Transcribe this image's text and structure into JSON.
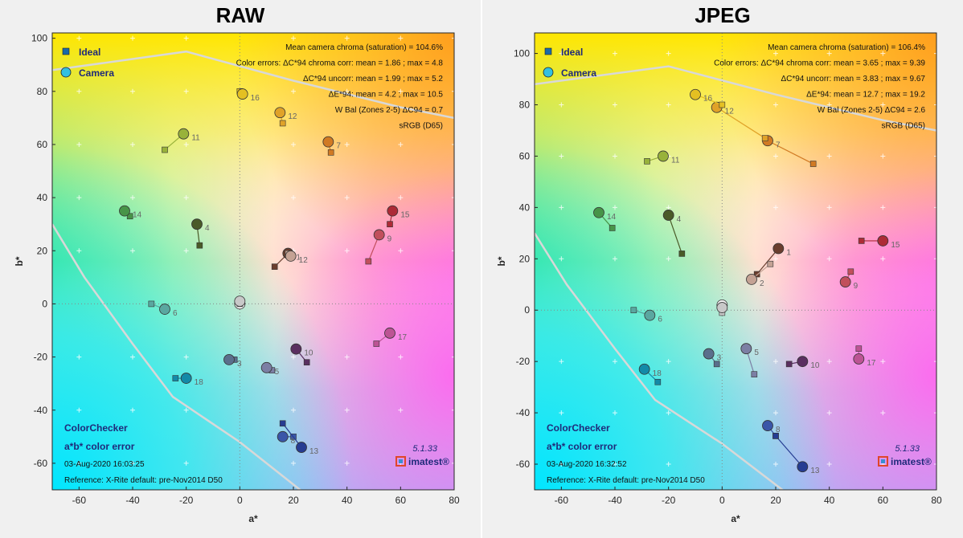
{
  "chart_data": [
    {
      "type": "scatter",
      "title": "RAW",
      "xlabel": "a*",
      "ylabel": "b*",
      "xlim": [
        -70,
        80
      ],
      "ylim": [
        -70,
        102
      ],
      "xticks": [
        -60,
        -40,
        -20,
        0,
        20,
        40,
        60,
        80
      ],
      "yticks": [
        -60,
        -40,
        -20,
        0,
        20,
        40,
        60,
        80,
        100
      ],
      "legend": [
        {
          "name": "Ideal",
          "marker": "square"
        },
        {
          "name": "Camera",
          "marker": "circle"
        }
      ],
      "info_lines": [
        "Mean camera chroma (saturation) = 104.6%",
        "Color errors:  ΔC*94 chroma corr:  mean = 1.86 ;  max = 4.8",
        "ΔC*94 uncorr:  mean = 1.99 ;  max = 5.2",
        "ΔE*94:  mean = 4.2 ;  max = 10.5",
        "W Bal (Zones 2-5)  ΔC94 = 0.7",
        "sRGB (D65)"
      ],
      "corner_bold": [
        "ColorChecker",
        "a*b* color error"
      ],
      "corner_text": [
        "03-Aug-2020 16:03:25",
        "Reference: X-Rite default:  pre-Nov2014  D50"
      ],
      "version": "5.1.33",
      "brand": "imatest®",
      "points": [
        {
          "label": "1",
          "ideal": [
            13,
            14
          ],
          "camera": [
            18,
            19
          ],
          "color": "#6a3e2e"
        },
        {
          "label": "12",
          "ideal": [
            18,
            19
          ],
          "camera": [
            19,
            18
          ],
          "color": "#c4a294"
        },
        {
          "label": "3",
          "ideal": [
            -2,
            -21
          ],
          "camera": [
            -4,
            -21
          ],
          "color": "#5a6f8c"
        },
        {
          "label": "4",
          "ideal": [
            -15,
            22
          ],
          "camera": [
            -16,
            30
          ],
          "color": "#4a5a28"
        },
        {
          "label": "5",
          "ideal": [
            12,
            -25
          ],
          "camera": [
            10,
            -24
          ],
          "color": "#7c7fa4"
        },
        {
          "label": "6",
          "ideal": [
            -33,
            0
          ],
          "camera": [
            -28,
            -2
          ],
          "color": "#5aa7a0"
        },
        {
          "label": "7",
          "ideal": [
            34,
            57
          ],
          "camera": [
            33,
            61
          ],
          "color": "#d17a23"
        },
        {
          "label": "8",
          "ideal": [
            20,
            -50
          ],
          "camera": [
            16,
            -50
          ],
          "color": "#3a56a8"
        },
        {
          "label": "9",
          "ideal": [
            48,
            16
          ],
          "camera": [
            52,
            26
          ],
          "color": "#c14f5c"
        },
        {
          "label": "10",
          "ideal": [
            25,
            -22
          ],
          "camera": [
            21,
            -17
          ],
          "color": "#5a2f60"
        },
        {
          "label": "11",
          "ideal": [
            -28,
            58
          ],
          "camera": [
            -21,
            64
          ],
          "color": "#98b23a"
        },
        {
          "label": "12",
          "ideal": [
            16,
            68
          ],
          "camera": [
            15,
            72
          ],
          "color": "#e0a228"
        },
        {
          "label": "13",
          "ideal": [
            16,
            -45
          ],
          "camera": [
            23,
            -54
          ],
          "color": "#263c92"
        },
        {
          "label": "14",
          "ideal": [
            -41,
            33
          ],
          "camera": [
            -43,
            35
          ],
          "color": "#479448"
        },
        {
          "label": "15",
          "ideal": [
            56,
            30
          ],
          "camera": [
            57,
            35
          ],
          "color": "#ad2b36"
        },
        {
          "label": "16",
          "ideal": [
            0,
            80
          ],
          "camera": [
            1,
            79
          ],
          "color": "#e4c022"
        },
        {
          "label": "17",
          "ideal": [
            51,
            -15
          ],
          "camera": [
            56,
            -11
          ],
          "color": "#bc5494"
        },
        {
          "label": "18",
          "ideal": [
            -24,
            -28
          ],
          "camera": [
            -20,
            -28
          ],
          "color": "#138aa8"
        },
        {
          "label": "",
          "ideal": [
            0,
            0
          ],
          "camera": [
            0,
            0
          ],
          "color": "#f4f4f4"
        },
        {
          "label": "",
          "ideal": [
            0,
            0
          ],
          "camera": [
            0,
            1
          ],
          "color": "#c8c8c8"
        }
      ]
    },
    {
      "type": "scatter",
      "title": "JPEG",
      "xlabel": "a*",
      "ylabel": "b*",
      "xlim": [
        -70,
        80
      ],
      "ylim": [
        -70,
        108
      ],
      "xticks": [
        -60,
        -40,
        -20,
        0,
        20,
        40,
        60,
        80
      ],
      "yticks": [
        -60,
        -40,
        -20,
        0,
        20,
        40,
        60,
        80,
        100
      ],
      "legend": [
        {
          "name": "Ideal",
          "marker": "square"
        },
        {
          "name": "Camera",
          "marker": "circle"
        }
      ],
      "info_lines": [
        "Mean camera chroma (saturation) = 106.4%",
        "Color errors:  ΔC*94 chroma corr:  mean = 3.65 ;  max = 9.39",
        "ΔC*94 uncorr:  mean = 3.83 ;  max = 9.67",
        "ΔE*94:  mean = 12.7 ;  max = 19.2",
        "W Bal (Zones 2-5)  ΔC94 = 2.6",
        "sRGB (D65)"
      ],
      "corner_bold": [
        "ColorChecker",
        "a*b* color error"
      ],
      "corner_text": [
        "03-Aug-2020 16:32:52",
        "Reference: X-Rite default:  pre-Nov2014  D50"
      ],
      "version": "5.1.33",
      "brand": "imatest®",
      "points": [
        {
          "label": "1",
          "ideal": [
            13,
            14
          ],
          "camera": [
            21,
            24
          ],
          "color": "#6a3e2e"
        },
        {
          "label": "2",
          "ideal": [
            18,
            18
          ],
          "camera": [
            11,
            12
          ],
          "color": "#c4a294"
        },
        {
          "label": "3",
          "ideal": [
            -2,
            -21
          ],
          "camera": [
            -5,
            -17
          ],
          "color": "#5a6f8c"
        },
        {
          "label": "4",
          "ideal": [
            -15,
            22
          ],
          "camera": [
            -20,
            37
          ],
          "color": "#4a5a28"
        },
        {
          "label": "5",
          "ideal": [
            12,
            -25
          ],
          "camera": [
            9,
            -15
          ],
          "color": "#7c7fa4"
        },
        {
          "label": "6",
          "ideal": [
            -33,
            0
          ],
          "camera": [
            -27,
            -2
          ],
          "color": "#5aa7a0"
        },
        {
          "label": "7",
          "ideal": [
            34,
            57
          ],
          "camera": [
            17,
            66
          ],
          "color": "#d17a23"
        },
        {
          "label": "8",
          "ideal": [
            20,
            -49
          ],
          "camera": [
            17,
            -45
          ],
          "color": "#3a56a8"
        },
        {
          "label": "9",
          "ideal": [
            48,
            15
          ],
          "camera": [
            46,
            11
          ],
          "color": "#c14f5c"
        },
        {
          "label": "10",
          "ideal": [
            25,
            -21
          ],
          "camera": [
            30,
            -20
          ],
          "color": "#5a2f60"
        },
        {
          "label": "11",
          "ideal": [
            -28,
            58
          ],
          "camera": [
            -22,
            60
          ],
          "color": "#98b23a"
        },
        {
          "label": "12",
          "ideal": [
            16,
            67
          ],
          "camera": [
            -2,
            79
          ],
          "color": "#e0a228"
        },
        {
          "label": "13",
          "ideal": [
            20,
            -49
          ],
          "camera": [
            30,
            -61
          ],
          "color": "#263c92"
        },
        {
          "label": "14",
          "ideal": [
            -41,
            32
          ],
          "camera": [
            -46,
            38
          ],
          "color": "#479448"
        },
        {
          "label": "15",
          "ideal": [
            52,
            27
          ],
          "camera": [
            60,
            27
          ],
          "color": "#ad2b36"
        },
        {
          "label": "16",
          "ideal": [
            0,
            80
          ],
          "camera": [
            -10,
            84
          ],
          "color": "#e4c022"
        },
        {
          "label": "17",
          "ideal": [
            51,
            -15
          ],
          "camera": [
            51,
            -19
          ],
          "color": "#bc5494"
        },
        {
          "label": "18",
          "ideal": [
            -24,
            -28
          ],
          "camera": [
            -29,
            -23
          ],
          "color": "#138aa8"
        },
        {
          "label": "",
          "ideal": [
            0,
            0
          ],
          "camera": [
            0,
            2
          ],
          "color": "#f4f4f4"
        },
        {
          "label": "",
          "ideal": [
            0,
            -1
          ],
          "camera": [
            0,
            1
          ],
          "color": "#c8c8c8"
        }
      ]
    }
  ]
}
